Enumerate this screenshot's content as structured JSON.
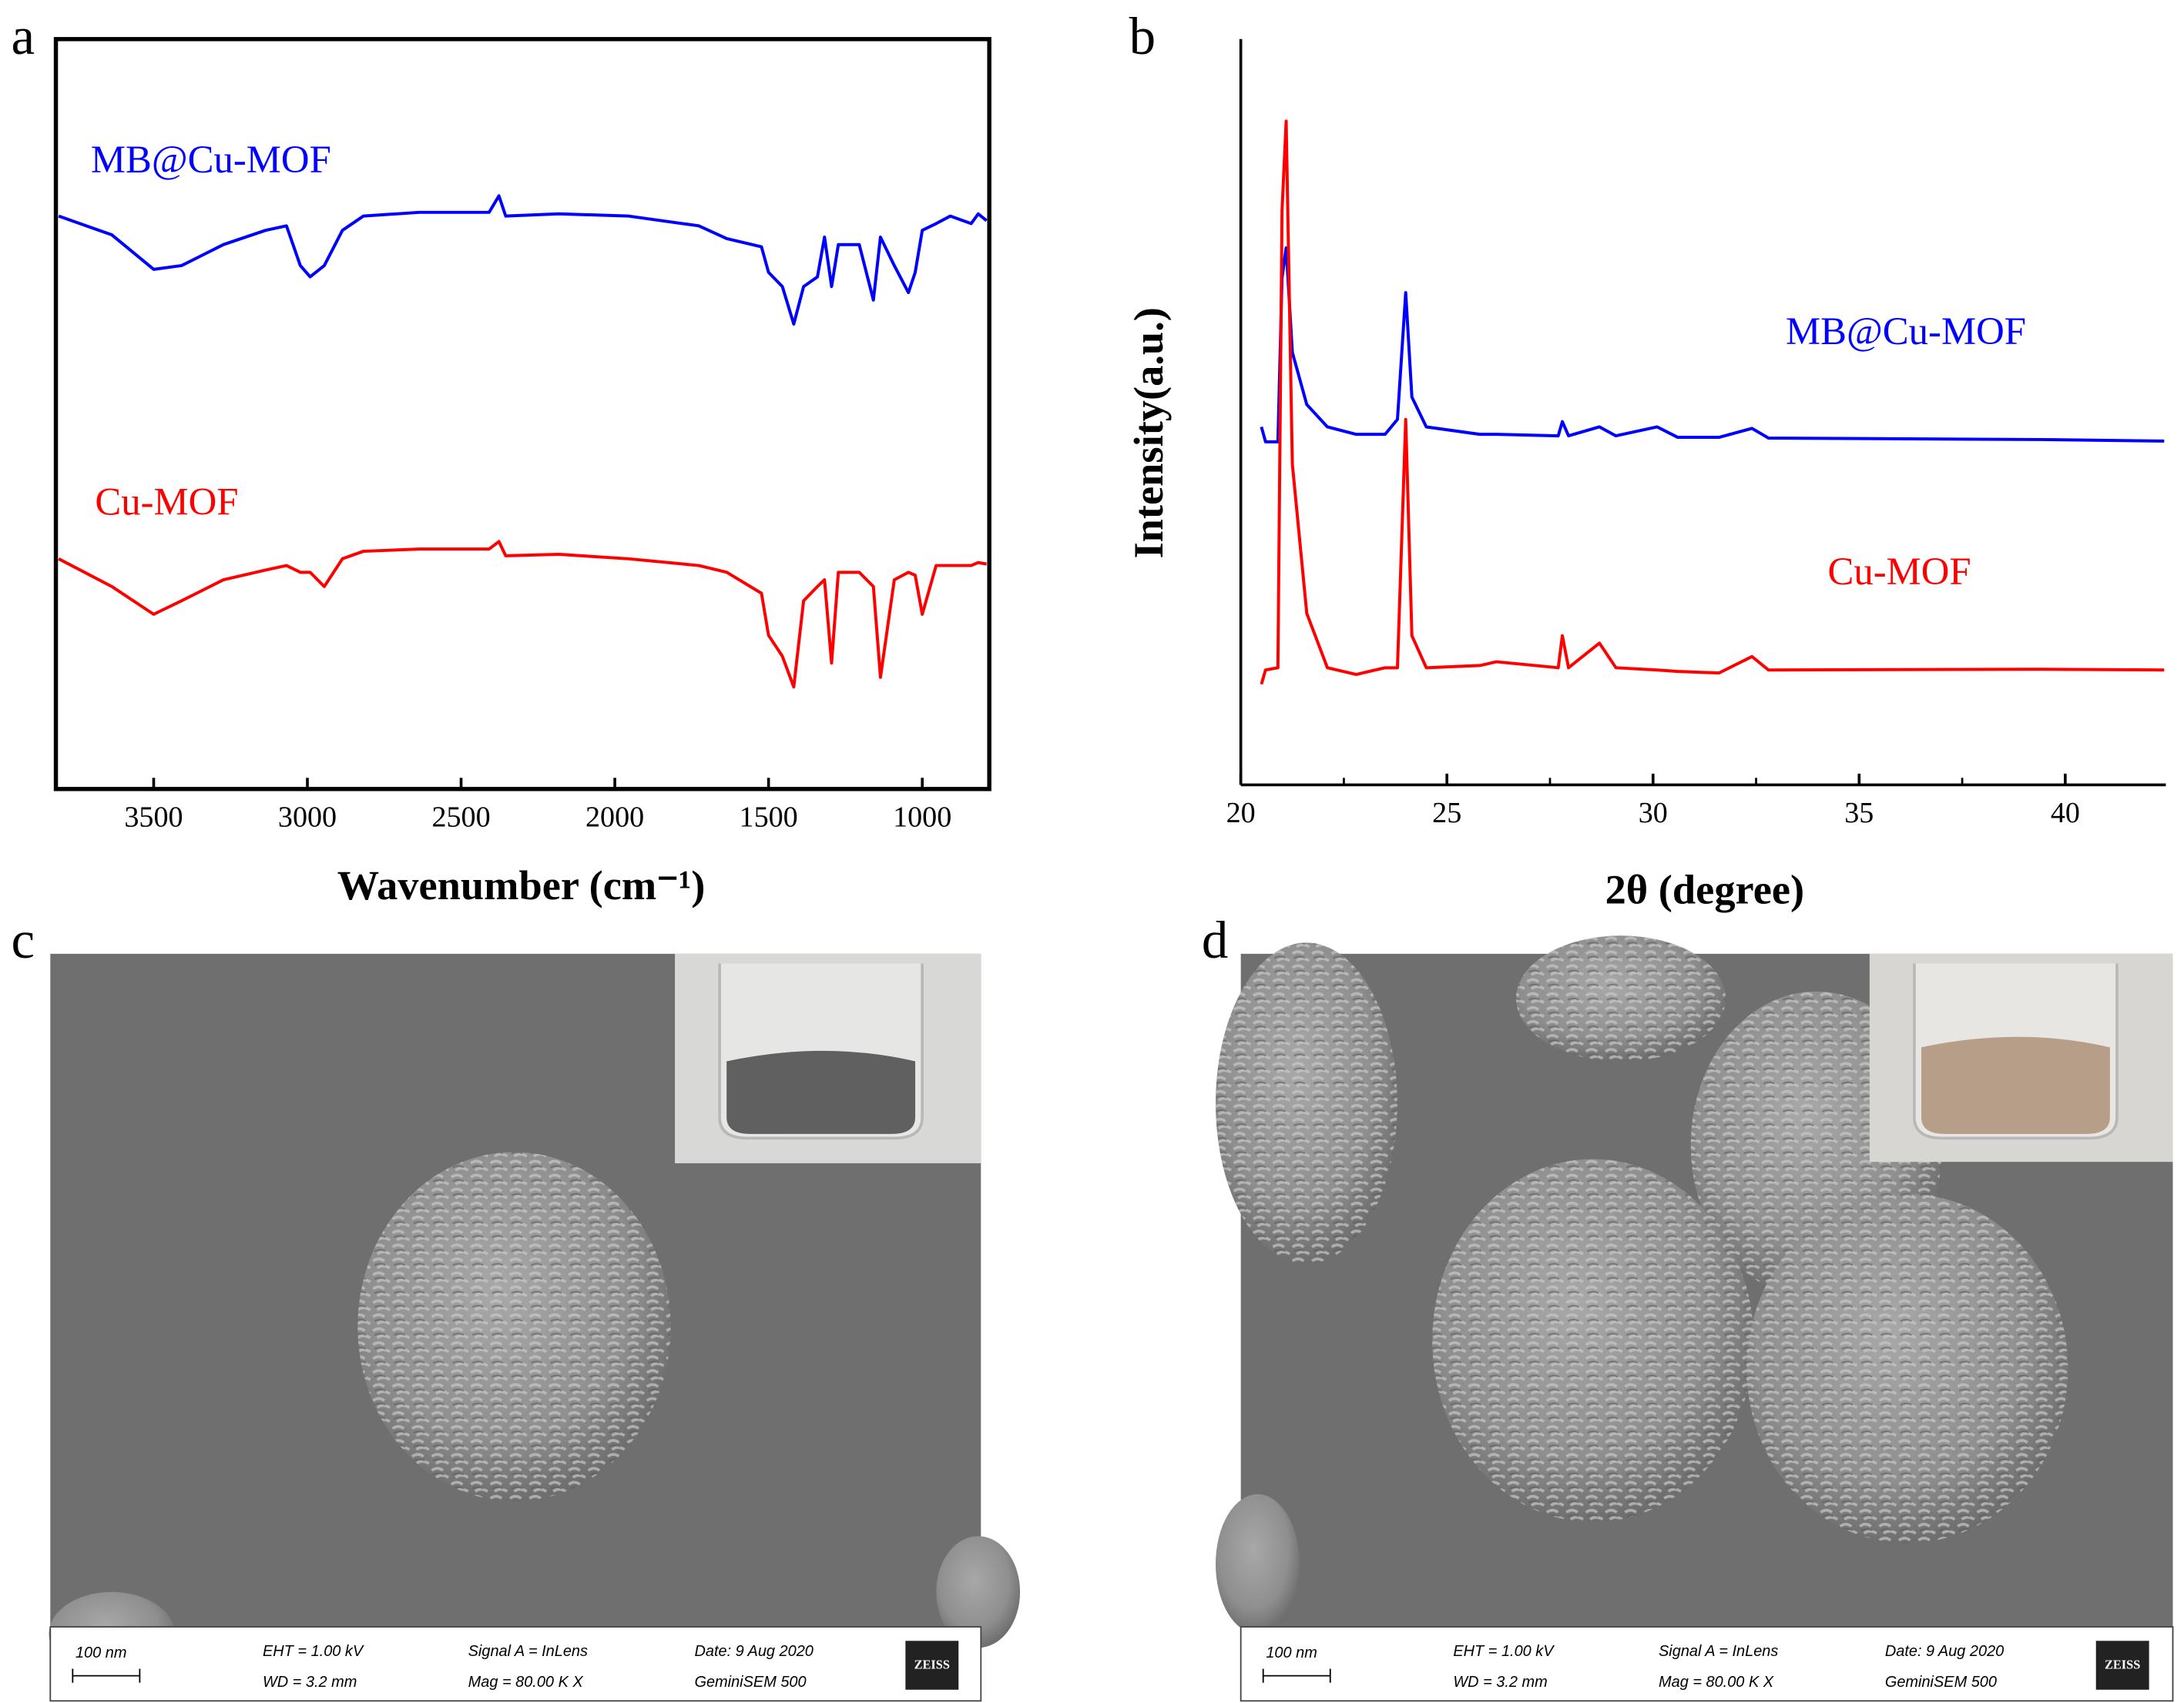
{
  "chart_data": [
    {
      "type": "line",
      "panel_label": "a",
      "x_label": "Wavenumber (cm⁻¹)",
      "x": [
        3809,
        3636,
        3500,
        3409,
        3273,
        3136,
        3068,
        3023,
        2991,
        2945,
        2886,
        2818,
        2636,
        2409,
        2377,
        2355,
        2182,
        1955,
        1727,
        1636,
        1523,
        1500,
        1455,
        1418,
        1386,
        1341,
        1318,
        1295,
        1273,
        1205,
        1159,
        1136,
        1091,
        1045,
        1023,
        1000,
        955,
        909,
        841,
        818,
        791
      ],
      "series": [
        {
          "name": "MB@Cu-MOF",
          "color": "#0000ff",
          "values": [
            76.4,
            73.9,
            69.3,
            69.8,
            72.6,
            74.5,
            75.1,
            69.8,
            68.3,
            69.8,
            74.5,
            76.4,
            76.9,
            76.9,
            79.1,
            76.4,
            76.7,
            76.4,
            75.1,
            73.4,
            72.3,
            68.9,
            67.0,
            62.0,
            67.0,
            68.3,
            73.6,
            67.0,
            72.6,
            72.6,
            65.2,
            73.6,
            69.8,
            66.2,
            68.9,
            74.5,
            75.4,
            76.4,
            75.4,
            76.7,
            75.8
          ]
        },
        {
          "name": "Cu-MOF",
          "color": "#ff0000",
          "values": [
            30.7,
            27.0,
            23.3,
            25.1,
            27.9,
            29.2,
            29.8,
            28.9,
            28.9,
            27.0,
            30.7,
            31.7,
            32.0,
            32.0,
            33.0,
            31.1,
            31.3,
            30.7,
            29.8,
            28.9,
            26.1,
            20.5,
            17.7,
            13.6,
            25.1,
            27.0,
            27.9,
            16.8,
            28.9,
            28.9,
            27.0,
            14.9,
            27.9,
            28.9,
            28.5,
            23.3,
            29.8,
            29.8,
            29.8,
            30.2,
            30.0
          ]
        }
      ],
      "xlim": [
        3818,
        782
      ],
      "xticks": [
        3500,
        3000,
        2500,
        2000,
        1500,
        1000
      ],
      "ylim": [
        0,
        100
      ]
    },
    {
      "type": "line",
      "panel_label": "b",
      "x_label": "2θ (degree)",
      "y_label": "Intensity(a.u.)",
      "x": [
        20.5,
        20.6,
        20.9,
        21.0,
        21.1,
        21.25,
        21.6,
        22.1,
        22.8,
        23.5,
        23.8,
        24.0,
        24.15,
        24.5,
        25.8,
        26.2,
        27.7,
        27.8,
        27.95,
        28.7,
        29.1,
        30.1,
        30.6,
        31.6,
        32.4,
        32.8,
        39.4,
        42.4
      ],
      "series": [
        {
          "name": "MB@Cu-MOF",
          "color": "#0000ff",
          "values": [
            48,
            46,
            46,
            68,
            72,
            58,
            51,
            48,
            47,
            47,
            49,
            66,
            52,
            48,
            47,
            47,
            46.8,
            48.7,
            46.8,
            48,
            46.8,
            48,
            46.6,
            46.6,
            47.8,
            46.5,
            46.3,
            46.1
          ]
        },
        {
          "name": "Cu-MOF",
          "color": "#ff0000",
          "values": [
            13.5,
            15.4,
            15.7,
            77,
            89,
            43,
            23,
            15.7,
            14.8,
            15.7,
            15.7,
            49,
            20,
            15.7,
            16,
            16.5,
            15.7,
            20,
            15.7,
            19,
            15.7,
            15.4,
            15.2,
            15,
            17.2,
            15.4,
            15.5,
            15.4
          ]
        }
      ],
      "xlim": [
        20,
        42.44
      ],
      "xticks": [
        20,
        25,
        30,
        35,
        40
      ],
      "xminor": [
        22.5,
        27.5,
        32.5,
        37.5
      ],
      "ylim": [
        0,
        100
      ]
    }
  ],
  "images": [
    {
      "panel_label": "c",
      "scale_bar": "100 nm",
      "eht": "EHT =  1.00 kV",
      "wd": "WD =  3.2 mm",
      "signal": "Signal A = InLens",
      "mag": "Mag =  80.00 K X",
      "date": "Date: 9 Aug 2020",
      "instrument": "GeminiSEM 500",
      "logo": "ZEISS"
    },
    {
      "panel_label": "d",
      "scale_bar": "100 nm",
      "eht": "EHT =  1.00 kV",
      "wd": "WD =  3.2 mm",
      "signal": "Signal A = InLens",
      "mag": "Mag =  80.00 K X",
      "date": "Date: 9 Aug 2020",
      "instrument": "GeminiSEM 500",
      "logo": "ZEISS"
    }
  ]
}
